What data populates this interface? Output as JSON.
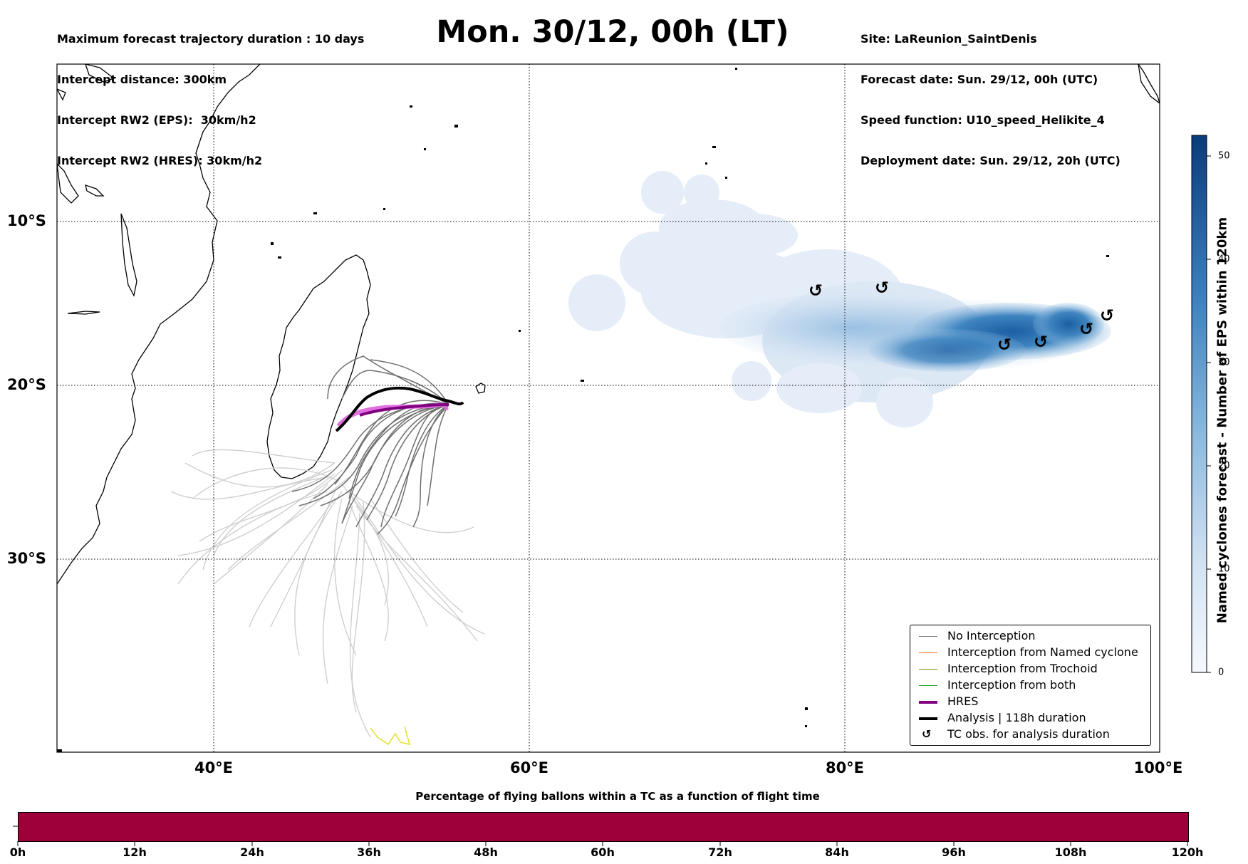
{
  "header": {
    "title": "Mon. 30/12, 00h (LT)",
    "info_left": [
      "Maximum forecast trajectory duration : 10 days",
      "Intercept distance: 300km",
      "Intercept RW2 (EPS):  30km/h2",
      "Intercept RW2 (HRES): 30km/h2"
    ],
    "info_right": [
      "Site: LaReunion_SaintDenis",
      "Forecast date: Sun. 29/12, 00h (UTC)",
      "Speed function: U10_speed_Helikite_4",
      "Deployment date: Sun. 29/12, 20h (UTC)"
    ]
  },
  "map": {
    "lon_labels": [
      "40°E",
      "60°E",
      "80°E",
      "100°E"
    ],
    "lat_labels": [
      "10°S",
      "20°S",
      "30°S"
    ],
    "cyclone_icon": "cyclone-symbol-icon",
    "cyclone_symbol": "↺"
  },
  "colorbar": {
    "title": "Named cyclones forecast - Number of EPS within 120km",
    "ticks": [
      "0",
      "10",
      "20",
      "30",
      "40",
      "50"
    ],
    "colors": [
      "#e6eef8",
      "#4a8fc4",
      "#0b3b7a"
    ]
  },
  "legend": {
    "items": [
      {
        "label": "No Interception",
        "color": "#808080"
      },
      {
        "label": "Interception from Named cyclone",
        "color": "#ff6a2b"
      },
      {
        "label": "Interception from Trochoid",
        "color": "#8a8a1a"
      },
      {
        "label": "Interception from both",
        "color": "#2ca02c"
      },
      {
        "label": "HRES",
        "color": "#800080"
      },
      {
        "label": "Analysis | 118h duration",
        "color": "#000000"
      },
      {
        "label": "TC obs. for analysis duration",
        "color": "#000000"
      }
    ]
  },
  "time_bar": {
    "title": "Percentage of flying ballons within a TC as a function of flight time",
    "color": "#9e003a",
    "ticks": [
      "0h",
      "12h",
      "24h",
      "36h",
      "48h",
      "60h",
      "72h",
      "84h",
      "96h",
      "108h",
      "120h"
    ]
  }
}
